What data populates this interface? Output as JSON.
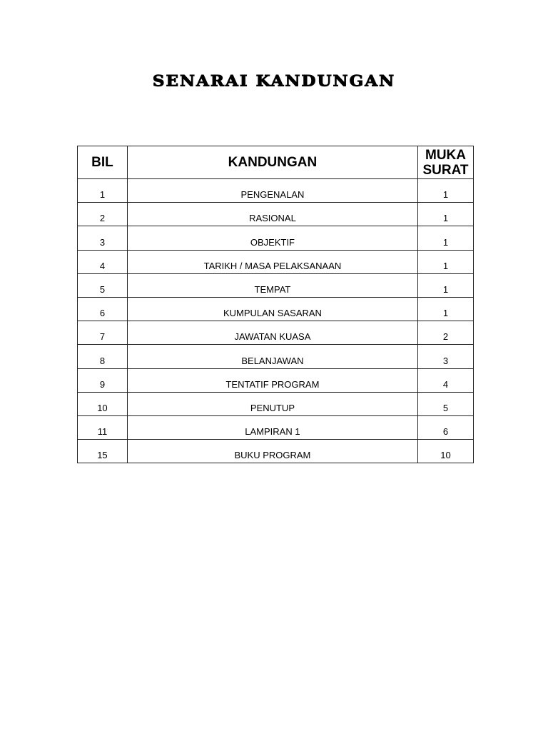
{
  "title": "SENARAI KANDUNGAN",
  "table": {
    "headers": {
      "bil": "BIL",
      "kandungan": "KANDUNGAN",
      "muka_surat_1": "MUKA",
      "muka_surat_2": "SURAT"
    },
    "rows": [
      {
        "bil": "1",
        "kandungan": "PENGENALAN",
        "muka": "1"
      },
      {
        "bil": "2",
        "kandungan": "RASIONAL",
        "muka": "1"
      },
      {
        "bil": "3",
        "kandungan": "OBJEKTIF",
        "muka": "1"
      },
      {
        "bil": "4",
        "kandungan": "TARIKH / MASA PELAKSANAAN",
        "muka": "1"
      },
      {
        "bil": "5",
        "kandungan": "TEMPAT",
        "muka": "1"
      },
      {
        "bil": "6",
        "kandungan": "KUMPULAN SASARAN",
        "muka": "1"
      },
      {
        "bil": "7",
        "kandungan": "JAWATAN KUASA",
        "muka": "2"
      },
      {
        "bil": "8",
        "kandungan": "BELANJAWAN",
        "muka": "3"
      },
      {
        "bil": "9",
        "kandungan": "TENTATIF PROGRAM",
        "muka": "4"
      },
      {
        "bil": "10",
        "kandungan": "PENUTUP",
        "muka": "5"
      },
      {
        "bil": "11",
        "kandungan": "LAMPIRAN 1",
        "muka": "6"
      },
      {
        "bil": "15",
        "kandungan": "BUKU PROGRAM",
        "muka": "10"
      }
    ]
  }
}
